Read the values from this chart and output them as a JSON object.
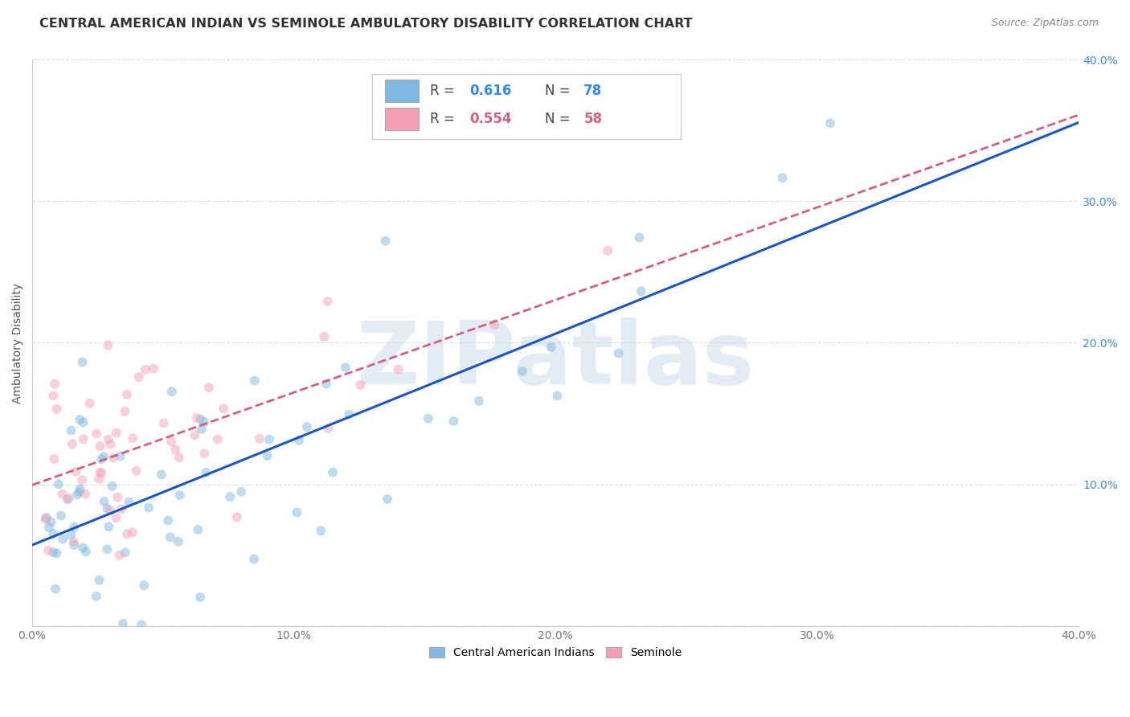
{
  "title": "CENTRAL AMERICAN INDIAN VS SEMINOLE AMBULATORY DISABILITY CORRELATION CHART",
  "source": "Source: ZipAtlas.com",
  "ylabel": "Ambulatory Disability",
  "watermark": "ZIPatlas",
  "blue_R": 0.616,
  "blue_N": 78,
  "pink_R": 0.554,
  "pink_N": 58,
  "legend_label_blue": "Central American Indians",
  "legend_label_pink": "Seminole",
  "xlim": [
    0.0,
    0.4
  ],
  "ylim": [
    0.0,
    0.4
  ],
  "xticks": [
    0.0,
    0.1,
    0.2,
    0.3,
    0.4
  ],
  "yticks": [
    0.0,
    0.1,
    0.2,
    0.3,
    0.4
  ],
  "xticklabels": [
    "0.0%",
    "10.0%",
    "20.0%",
    "30.0%",
    "40.0%"
  ],
  "yticklabels": [
    "",
    "10.0%",
    "20.0%",
    "30.0%",
    "40.0%"
  ],
  "blue_color": "#7fb8e0",
  "pink_color": "#f4a0b5",
  "blue_line_color": "#1a56c4",
  "pink_line_color": "#d46080",
  "grid_color": "#dddddd",
  "background_color": "#ffffff",
  "title_fontsize": 11.5,
  "axis_label_fontsize": 10,
  "tick_label_fontsize": 10,
  "marker_size": 75,
  "marker_alpha": 0.5,
  "blue_seed": 42,
  "pink_seed": 7
}
